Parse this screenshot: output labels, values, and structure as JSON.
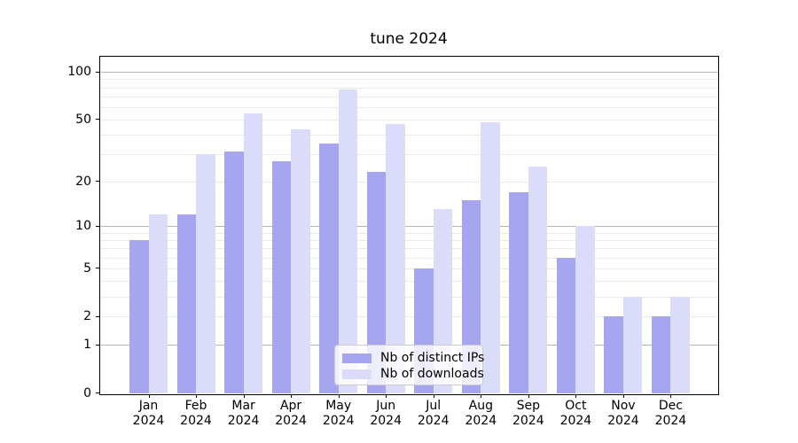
{
  "title": "tune 2024",
  "chart_data": {
    "type": "bar",
    "title": "tune 2024",
    "categories": [
      "Jan",
      "Feb",
      "Mar",
      "Apr",
      "May",
      "Jun",
      "Jul",
      "Aug",
      "Sep",
      "Oct",
      "Nov",
      "Dec"
    ],
    "category_year": "2024",
    "series": [
      {
        "name": "Nb of distinct IPs",
        "color": "#a6a6f0",
        "values": [
          8,
          12,
          31,
          27,
          35,
          23,
          5,
          15,
          17,
          6,
          2,
          2
        ]
      },
      {
        "name": "Nb of downloads",
        "color": "#dbdbfa",
        "values": [
          12,
          30,
          55,
          43,
          78,
          47,
          13,
          48,
          25,
          10,
          3,
          3
        ]
      }
    ],
    "yscale": "log1p",
    "ylim": [
      0,
      126
    ],
    "yticks": [
      100,
      50,
      20,
      10,
      5,
      2,
      1,
      0
    ],
    "major_gridlines": [
      1,
      10,
      100
    ],
    "minor_gridlines": [
      2,
      3,
      4,
      5,
      6,
      7,
      8,
      9,
      20,
      30,
      40,
      50,
      60,
      70,
      80,
      90
    ],
    "grid": true,
    "legend_position": "lower center",
    "xlabel": "",
    "ylabel": ""
  },
  "legend": {
    "items": [
      "Nb of distinct IPs",
      "Nb of downloads"
    ]
  },
  "colors": {
    "bar_distinct_ips": "#a6a6f0",
    "bar_downloads": "#dbdbfa",
    "major_grid": "#b4b4b4",
    "minor_grid": "#eaeaea",
    "spine": "#000000",
    "text": "#000000",
    "legend_border": "#cccccc",
    "legend_background": "rgba(255,255,255,0.8)"
  }
}
